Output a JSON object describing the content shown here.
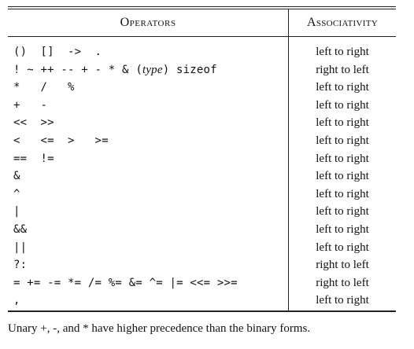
{
  "header": {
    "operators": "Operators",
    "associativity": "Associativity"
  },
  "rows": [
    {
      "ops": "()  []  ->  .",
      "assoc": "left to right"
    },
    {
      "ops_pre": "! ~ ++ -- + - * & (",
      "ops_type": "type",
      "ops_post": ") sizeof",
      "assoc": "right to left"
    },
    {
      "ops": "*   /   %",
      "assoc": "left to right"
    },
    {
      "ops": "+   -",
      "assoc": "left to right"
    },
    {
      "ops": "<<  >>",
      "assoc": "left to right"
    },
    {
      "ops": "<   <=  >   >=",
      "assoc": "left to right"
    },
    {
      "ops": "==  !=",
      "assoc": "left to right"
    },
    {
      "ops": "&",
      "assoc": "left to right"
    },
    {
      "ops": "^",
      "assoc": "left to right"
    },
    {
      "ops": "|",
      "assoc": "left to right"
    },
    {
      "ops": "&&",
      "assoc": "left to right"
    },
    {
      "ops": "||",
      "assoc": "left to right"
    },
    {
      "ops": "?:",
      "assoc": "right to left"
    },
    {
      "ops": "= += -= *= /= %= &= ^= |= <<= >>=",
      "assoc": "right to left"
    },
    {
      "ops": ",",
      "assoc": "left to right"
    }
  ],
  "footnote": "Unary +, -, and * have higher precedence than the binary forms."
}
